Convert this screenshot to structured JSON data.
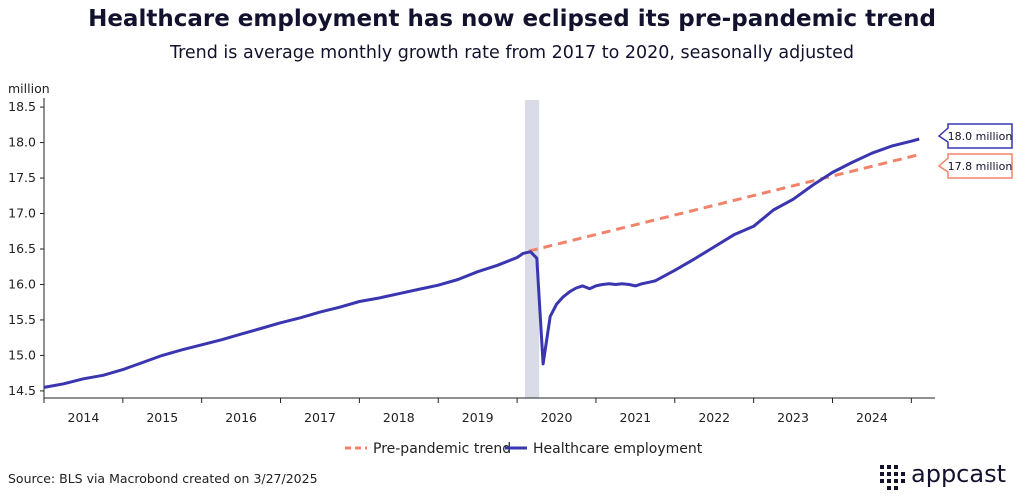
{
  "title": "Healthcare employment has now eclipsed its pre-pandemic trend",
  "subtitle": "Trend is average monthly growth rate from 2017 to 2020, seasonally adjusted",
  "source": "Source: BLS via Macrobond created on 3/27/2025",
  "brand": {
    "name": "appcast",
    "logo_icon": "dot-grid-icon",
    "color": "#12122e"
  },
  "chart_data": {
    "type": "line",
    "ylabel": "million",
    "ylim": [
      14.4,
      18.6
    ],
    "yticks": [
      14.5,
      15.0,
      15.5,
      16.0,
      16.5,
      17.0,
      17.5,
      18.0,
      18.5
    ],
    "ytick_labels": [
      "14.5",
      "15.0",
      "15.5",
      "16.0",
      "16.5",
      "17.0",
      "17.5",
      "18.0",
      "18.5"
    ],
    "xlim": [
      2014.0,
      2025.3
    ],
    "xtick_labels": [
      "2014",
      "2015",
      "2016",
      "2017",
      "2018",
      "2019",
      "2020",
      "2021",
      "2022",
      "2023",
      "2024"
    ],
    "xtick_positions": [
      2014.5,
      2015.5,
      2016.5,
      2017.5,
      2018.5,
      2019.5,
      2020.5,
      2021.5,
      2022.5,
      2023.5,
      2024.5
    ],
    "shaded_period": {
      "start": 2020.1,
      "end": 2020.28,
      "color": "#d9dce6"
    },
    "legend_position": "bottom",
    "series": [
      {
        "name": "Pre-pandemic trend",
        "style": "dashed",
        "color": "#f2836b",
        "end_label": "17.8 million",
        "x": [
          2020.15,
          2025.1
        ],
        "y": [
          16.47,
          17.83
        ]
      },
      {
        "name": "Healthcare employment",
        "style": "solid",
        "color": "#3a36b0",
        "end_label": "18.0 million",
        "x": [
          2014.0,
          2014.25,
          2014.5,
          2014.75,
          2015.0,
          2015.25,
          2015.5,
          2015.75,
          2016.0,
          2016.25,
          2016.5,
          2016.75,
          2017.0,
          2017.25,
          2017.5,
          2017.75,
          2018.0,
          2018.25,
          2018.5,
          2018.75,
          2019.0,
          2019.25,
          2019.5,
          2019.75,
          2020.0,
          2020.08,
          2020.17,
          2020.25,
          2020.33,
          2020.42,
          2020.5,
          2020.58,
          2020.67,
          2020.75,
          2020.83,
          2020.92,
          2021.0,
          2021.08,
          2021.17,
          2021.25,
          2021.33,
          2021.42,
          2021.5,
          2021.58,
          2021.67,
          2021.75,
          2022.0,
          2022.25,
          2022.5,
          2022.75,
          2023.0,
          2023.25,
          2023.5,
          2023.75,
          2024.0,
          2024.25,
          2024.5,
          2024.75,
          2025.0,
          2025.1
        ],
        "y": [
          14.55,
          14.6,
          14.67,
          14.72,
          14.8,
          14.9,
          15.0,
          15.08,
          15.15,
          15.22,
          15.3,
          15.38,
          15.46,
          15.53,
          15.61,
          15.68,
          15.76,
          15.81,
          15.87,
          15.93,
          15.99,
          16.07,
          16.18,
          16.27,
          16.38,
          16.44,
          16.46,
          16.37,
          14.88,
          15.55,
          15.72,
          15.82,
          15.9,
          15.95,
          15.98,
          15.94,
          15.98,
          16.0,
          16.01,
          16.0,
          16.01,
          16.0,
          15.98,
          16.01,
          16.03,
          16.05,
          16.2,
          16.36,
          16.53,
          16.7,
          16.82,
          17.05,
          17.2,
          17.4,
          17.58,
          17.72,
          17.85,
          17.95,
          18.02,
          18.05
        ]
      }
    ]
  }
}
